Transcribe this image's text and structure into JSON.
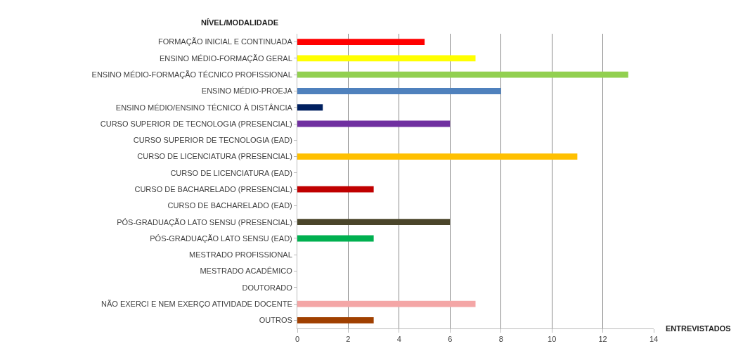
{
  "chart_data": {
    "type": "bar",
    "orientation": "horizontal",
    "xlabel": "ENTREVISTADOS",
    "ylabel": "NÍVEL/MODALIDADE",
    "categories": [
      "FORMAÇÃO INICIAL E CONTINUADA",
      "ENSINO MÉDIO-FORMAÇÃO GERAL",
      "ENSINO MÉDIO-FORMAÇÃO TÉCNICO PROFISSIONAL",
      "ENSINO MÉDIO-PROEJA",
      "ENSINO MÉDIO/ENSINO TÉCNICO À DISTÂNCIA",
      "CURSO SUPERIOR DE TECNOLOGIA (PRESENCIAL)",
      "CURSO SUPERIOR DE TECNOLOGIA (EAD)",
      "CURSO DE LICENCIATURA (PRESENCIAL)",
      "CURSO DE LICENCIATURA (EAD)",
      "CURSO DE BACHARELADO (PRESENCIAL)",
      "CURSO DE BACHARELADO (EAD)",
      "PÓS-GRADUAÇÃO LATO SENSU (PRESENCIAL)",
      "PÓS-GRADUAÇÃO LATO SENSU (EAD)",
      "MESTRADO PROFISSIONAL",
      "MESTRADO ACADÊMICO",
      "DOUTORADO",
      "NÃO EXERCI E NEM EXERÇO ATIVIDADE DOCENTE",
      "OUTROS"
    ],
    "values": [
      5,
      7,
      13,
      8,
      1,
      6,
      0,
      11,
      0,
      3,
      0,
      6,
      3,
      0,
      0,
      0,
      7,
      3
    ],
    "colors": [
      "#ff0000",
      "#ffff00",
      "#92d050",
      "#4f81bd",
      "#002060",
      "#7030a0",
      "#4f81bd",
      "#ffc000",
      "#4f81bd",
      "#c00000",
      "#4f81bd",
      "#4a452a",
      "#00b050",
      "#4f81bd",
      "#4f81bd",
      "#4f81bd",
      "#f4a6a6",
      "#a04000"
    ],
    "xlim": [
      0,
      14
    ],
    "xticks": [
      0,
      2,
      4,
      6,
      8,
      10,
      12,
      14
    ],
    "grid": "x"
  }
}
